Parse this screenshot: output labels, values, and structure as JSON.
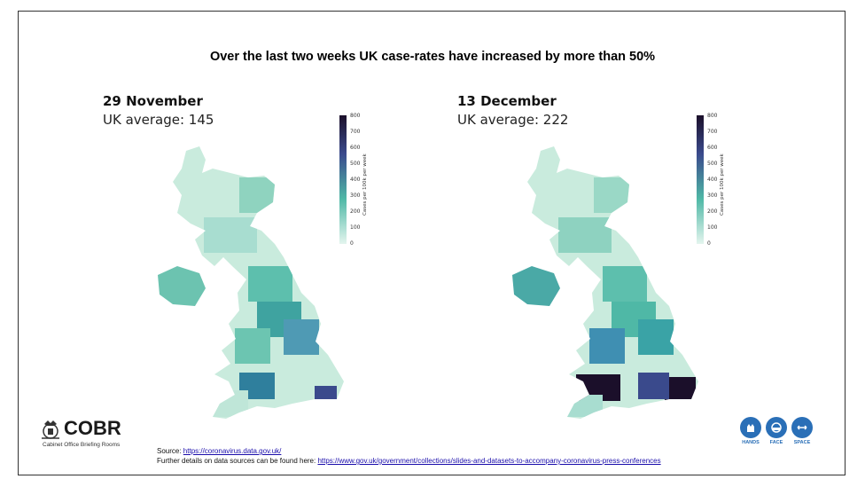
{
  "title": "Over the last two weeks UK case-rates have increased by more than 50%",
  "panels": [
    {
      "date": "29 November",
      "average": "UK average: 145"
    },
    {
      "date": "13 December",
      "average": "UK average: 222"
    }
  ],
  "colorbar": {
    "label": "Cases per 100k per week",
    "ticks": [
      "800",
      "700",
      "600",
      "500",
      "400",
      "300",
      "200",
      "100",
      "0"
    ]
  },
  "logo": {
    "name": "COBR",
    "subtitle": "Cabinet Office Briefing Rooms"
  },
  "source": {
    "prefix": "Source: ",
    "link": "https://coronavirus.data.gov.uk/",
    "details_prefix": "Further details on data sources can be found here: ",
    "details_link": "https://www.gov.uk/government/collections/slides-and-datasets-to-accompany-coronavirus-press-conferences"
  },
  "campaign": {
    "items": [
      "HANDS",
      "FACE",
      "SPACE"
    ]
  },
  "colors": {
    "low": "#e4f5ee",
    "mid": "#4fb8a6",
    "high": "#3a4a8c",
    "max": "#1b0f2a",
    "campaign": "#2a6fb7"
  }
}
